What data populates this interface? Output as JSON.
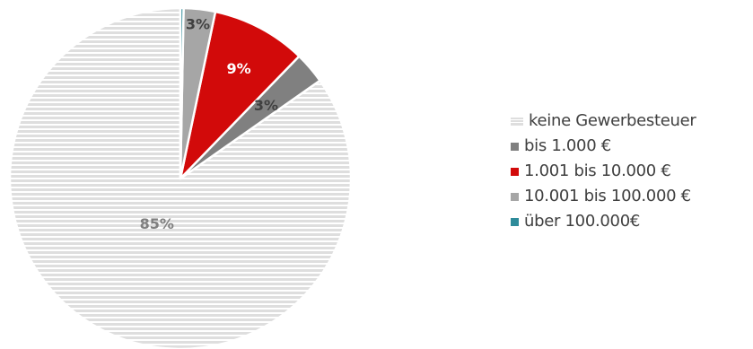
{
  "chart_data": {
    "type": "pie",
    "title": "",
    "slices": [
      {
        "label": "keine Gewerbesteuer",
        "value": 85,
        "display": "85%",
        "color": "#e0e0e0",
        "label_color": "#7f7f7f",
        "pattern": "horizontal-stripes"
      },
      {
        "label": "bis 1.000 €",
        "value": 3,
        "display": "3%",
        "color": "#808080",
        "label_color": "#404040",
        "pattern": "solid"
      },
      {
        "label": "1.001 bis 10.000 €",
        "value": 9,
        "display": "9%",
        "color": "#d20a0a",
        "label_color": "#ffffff",
        "pattern": "solid"
      },
      {
        "label": "10.001 bis 100.000 €",
        "value": 3,
        "display": "3%",
        "color": "#a6a6a6",
        "label_color": "#404040",
        "pattern": "solid"
      },
      {
        "label": "über 100.000€",
        "value": 0.3,
        "display": "",
        "color": "#2e8b9a",
        "label_color": "#404040",
        "pattern": "solid"
      }
    ],
    "start_angle_deg": 0,
    "direction": "counterclockwise",
    "legend_position": "right"
  }
}
